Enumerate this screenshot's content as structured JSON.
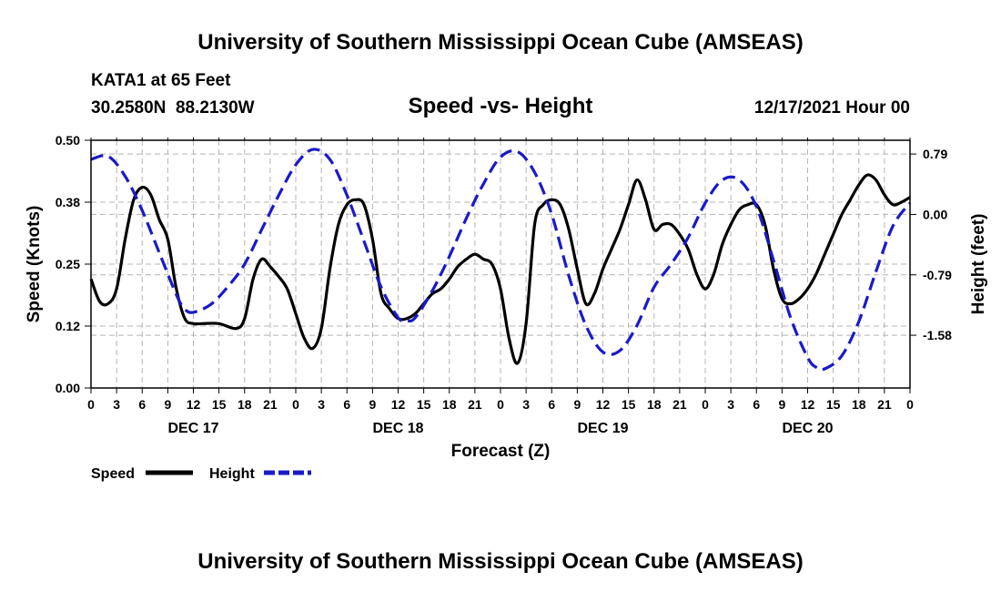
{
  "header": {
    "title": "University of Southern Mississippi Ocean Cube (AMSEAS)",
    "station_line": "KATA1 at 65 Feet",
    "coords_line": "30.2580N  88.2130W",
    "subtitle": "Speed -vs- Height",
    "run_label": "12/17/2021 Hour 00"
  },
  "footer": {
    "title": "University of Southern Mississippi Ocean Cube (AMSEAS)"
  },
  "chart_data": {
    "type": "line",
    "title": "Speed -vs- Height",
    "xlabel": "Forecast (Z)",
    "ylabel_left": "Speed (Knots)",
    "ylabel_right": "Height (feet)",
    "x_unit": "forecast hours from 12/17/2021 00Z",
    "xlim": [
      0,
      96
    ],
    "ylim_left": [
      0,
      0.5
    ],
    "ylim_right": [
      -2.27,
      0.97
    ],
    "grid": true,
    "x_ticks": [
      0,
      3,
      6,
      9,
      12,
      15,
      18,
      21,
      24,
      27,
      30,
      33,
      36,
      39,
      42,
      45,
      48,
      51,
      54,
      57,
      60,
      63,
      66,
      69,
      72,
      75,
      78,
      81,
      84,
      87,
      90,
      93,
      96
    ],
    "x_tick_labels": [
      "0",
      "3",
      "6",
      "9",
      "12",
      "15",
      "18",
      "21",
      "0",
      "3",
      "6",
      "9",
      "12",
      "15",
      "18",
      "21",
      "0",
      "3",
      "6",
      "9",
      "12",
      "15",
      "18",
      "21",
      "0",
      "3",
      "6",
      "9",
      "12",
      "15",
      "18",
      "21",
      "0"
    ],
    "day_labels": [
      {
        "hour": 12,
        "label": "DEC 17"
      },
      {
        "hour": 36,
        "label": "DEC 18"
      },
      {
        "hour": 60,
        "label": "DEC 19"
      },
      {
        "hour": 84,
        "label": "DEC 20"
      }
    ],
    "y_left_ticks": [
      0,
      0.125,
      0.25,
      0.375,
      0.5
    ],
    "y_left_tick_labels": [
      "0.00",
      "0.12",
      "0.25",
      "0.38",
      "0.50"
    ],
    "y_right_ticks": [
      -1.58,
      -0.79,
      0.0,
      0.79
    ],
    "y_right_tick_labels": [
      "-1.58",
      "-0.79",
      "0.00",
      "0.79"
    ],
    "legend": [
      {
        "name": "Speed",
        "color": "#000000",
        "dash": "solid"
      },
      {
        "name": "Height",
        "color": "#1a1ac8",
        "dash": "dashed"
      }
    ],
    "series": [
      {
        "name": "Speed",
        "axis": "left",
        "color": "#000000",
        "x": [
          0,
          1,
          2,
          3,
          4,
          5,
          6,
          7,
          8,
          9,
          10,
          11,
          12,
          13,
          15,
          17,
          18,
          19,
          20,
          21,
          22,
          23,
          24,
          25,
          26,
          27,
          28,
          29,
          30,
          31,
          32,
          33,
          34,
          35,
          36,
          37,
          38,
          39,
          40,
          41,
          42,
          43,
          44,
          45,
          46,
          47,
          48,
          49,
          50,
          51,
          52,
          53,
          54,
          55,
          56,
          57,
          58,
          59,
          60,
          61,
          62,
          63,
          64,
          65,
          66,
          67,
          68,
          69,
          70,
          71,
          72,
          73,
          74,
          75,
          76,
          77,
          78,
          79,
          80,
          81,
          82,
          83,
          84,
          85,
          86,
          87,
          88,
          89,
          90,
          91,
          92,
          93,
          94,
          95,
          96
        ],
        "y": [
          0.22,
          0.175,
          0.17,
          0.2,
          0.3,
          0.38,
          0.405,
          0.39,
          0.34,
          0.3,
          0.2,
          0.14,
          0.13,
          0.13,
          0.13,
          0.12,
          0.14,
          0.22,
          0.26,
          0.245,
          0.225,
          0.2,
          0.15,
          0.1,
          0.08,
          0.12,
          0.24,
          0.33,
          0.37,
          0.38,
          0.37,
          0.3,
          0.19,
          0.16,
          0.14,
          0.14,
          0.15,
          0.17,
          0.19,
          0.2,
          0.22,
          0.245,
          0.26,
          0.27,
          0.26,
          0.25,
          0.2,
          0.1,
          0.05,
          0.13,
          0.33,
          0.37,
          0.38,
          0.37,
          0.32,
          0.24,
          0.17,
          0.19,
          0.24,
          0.28,
          0.32,
          0.37,
          0.42,
          0.38,
          0.32,
          0.33,
          0.33,
          0.31,
          0.28,
          0.23,
          0.2,
          0.23,
          0.29,
          0.33,
          0.36,
          0.37,
          0.37,
          0.33,
          0.24,
          0.18,
          0.17,
          0.18,
          0.2,
          0.23,
          0.27,
          0.31,
          0.35,
          0.38,
          0.41,
          0.43,
          0.42,
          0.39,
          0.37,
          0.375,
          0.385
        ]
      },
      {
        "name": "Height",
        "axis": "right",
        "color": "#1a1ac8",
        "x": [
          0,
          2,
          4,
          6,
          8,
          10,
          11,
          12,
          14,
          16,
          18,
          20,
          22,
          24,
          26,
          28,
          30,
          32,
          34,
          36,
          37,
          38,
          40,
          42,
          44,
          46,
          48,
          50,
          52,
          54,
          56,
          58,
          60,
          62,
          64,
          66,
          68,
          70,
          72,
          74,
          76,
          78,
          80,
          82,
          84,
          85,
          86,
          88,
          90,
          92,
          94,
          96
        ],
        "y": [
          0.72,
          0.76,
          0.5,
          0.05,
          -0.5,
          -1.05,
          -1.24,
          -1.28,
          -1.18,
          -0.95,
          -0.65,
          -0.2,
          0.25,
          0.65,
          0.85,
          0.72,
          0.25,
          -0.35,
          -0.95,
          -1.35,
          -1.39,
          -1.35,
          -1.0,
          -0.55,
          -0.05,
          0.4,
          0.75,
          0.82,
          0.55,
          0.0,
          -0.8,
          -1.45,
          -1.8,
          -1.78,
          -1.45,
          -0.95,
          -0.65,
          -0.3,
          0.15,
          0.45,
          0.45,
          0.1,
          -0.6,
          -1.35,
          -1.87,
          -2.0,
          -2.02,
          -1.85,
          -1.4,
          -0.75,
          -0.15,
          0.15
        ]
      }
    ]
  }
}
